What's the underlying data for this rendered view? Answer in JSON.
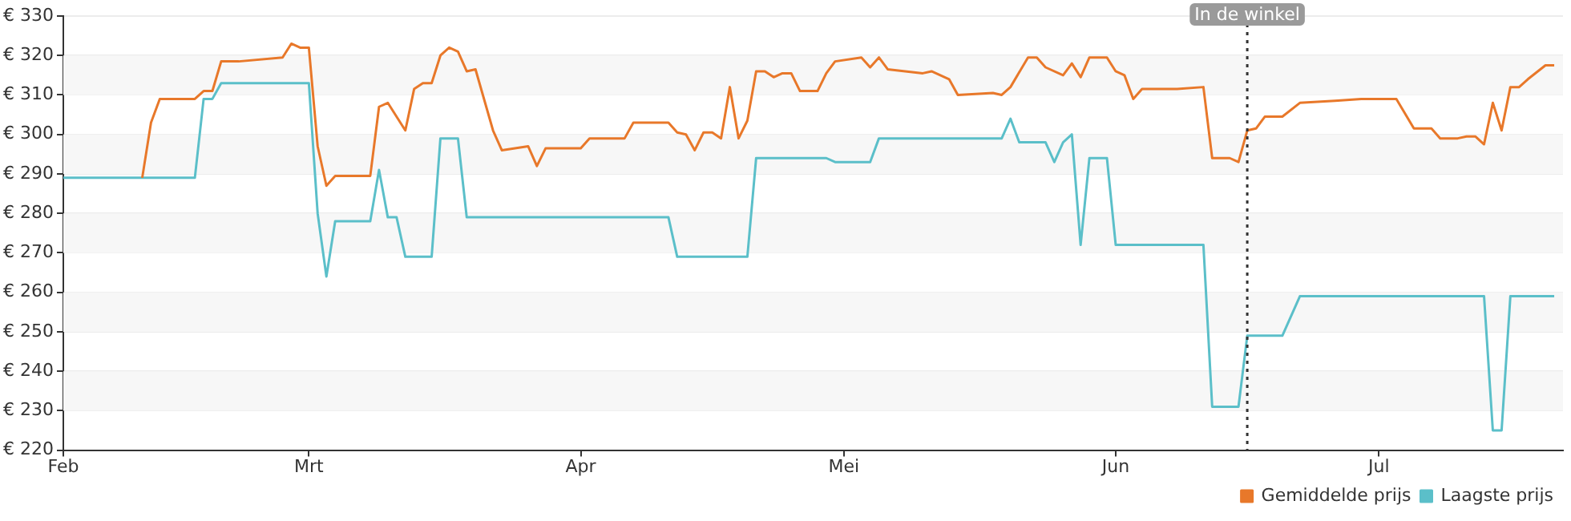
{
  "chart_data": {
    "type": "line",
    "xlim": [
      "--02-01",
      "--07-22"
    ],
    "xticks": [
      {
        "value": "--02-01",
        "label": "Feb"
      },
      {
        "value": "--03-01",
        "label": "Mrt"
      },
      {
        "value": "--04-01",
        "label": "Apr"
      },
      {
        "value": "--05-01",
        "label": "Mei"
      },
      {
        "value": "--06-01",
        "label": "Jun"
      },
      {
        "value": "--07-01",
        "label": "Jul"
      }
    ],
    "ylim": [
      220,
      330
    ],
    "yticks": [
      {
        "value": 220,
        "label": "€ 220"
      },
      {
        "value": 230,
        "label": "€ 230"
      },
      {
        "value": 240,
        "label": "€ 240"
      },
      {
        "value": 250,
        "label": "€ 250"
      },
      {
        "value": 260,
        "label": "€ 260"
      },
      {
        "value": 270,
        "label": "€ 270"
      },
      {
        "value": 280,
        "label": "€ 280"
      },
      {
        "value": 290,
        "label": "€ 290"
      },
      {
        "value": 300,
        "label": "€ 300"
      },
      {
        "value": 310,
        "label": "€ 310"
      },
      {
        "value": 320,
        "label": "€ 320"
      },
      {
        "value": 330,
        "label": "€ 330"
      }
    ],
    "grid": "y",
    "legend": "bottom right",
    "marker": "none",
    "line_style": "solid",
    "ref_lines": [
      {
        "axis": "x",
        "value": "--06-16",
        "label": "In de winkel",
        "line_style": "dotted",
        "color": "#333333"
      }
    ],
    "series": [
      {
        "name": "Gemiddelde prijs",
        "color": "#e8782a",
        "x": [
          "--02-10",
          "--02-11",
          "--02-12",
          "--02-16",
          "--02-17",
          "--02-18",
          "--02-19",
          "--02-21",
          "--02-26",
          "--02-27",
          "--02-28",
          "--03-01",
          "--03-02",
          "--03-03",
          "--03-04",
          "--03-08",
          "--03-09",
          "--03-10",
          "--03-12",
          "--03-13",
          "--03-14",
          "--03-15",
          "--03-16",
          "--03-17",
          "--03-18",
          "--03-19",
          "--03-20",
          "--03-22",
          "--03-23",
          "--03-26",
          "--03-27",
          "--03-28",
          "--04-01",
          "--04-02",
          "--04-06",
          "--04-07",
          "--04-11",
          "--04-12",
          "--04-13",
          "--04-14",
          "--04-15",
          "--04-16",
          "--04-17",
          "--04-18",
          "--04-19",
          "--04-20",
          "--04-21",
          "--04-22",
          "--04-23",
          "--04-24",
          "--04-25",
          "--04-26",
          "--04-28",
          "--04-29",
          "--04-30",
          "--05-03",
          "--05-04",
          "--05-05",
          "--05-06",
          "--05-08",
          "--05-10",
          "--05-11",
          "--05-13",
          "--05-14",
          "--05-18",
          "--05-19",
          "--05-20",
          "--05-22",
          "--05-23",
          "--05-24",
          "--05-26",
          "--05-27",
          "--05-28",
          "--05-29",
          "--05-31",
          "--06-01",
          "--06-02",
          "--06-03",
          "--06-04",
          "--06-08",
          "--06-11",
          "--06-12",
          "--06-14",
          "--06-15",
          "--06-16",
          "--06-17",
          "--06-18",
          "--06-20",
          "--06-22",
          "--06-26",
          "--06-29",
          "--07-03",
          "--07-05",
          "--07-07",
          "--07-08",
          "--07-10",
          "--07-11",
          "--07-12",
          "--07-13",
          "--07-14",
          "--07-15",
          "--07-16",
          "--07-17",
          "--07-18",
          "--07-20",
          "--07-21"
        ],
        "values": [
          289,
          303,
          309,
          309,
          311,
          311,
          318.5,
          318.5,
          319.5,
          323,
          322,
          322,
          297,
          287,
          289.5,
          289.5,
          307,
          308,
          301,
          311.5,
          313,
          313,
          320,
          322,
          321,
          316,
          316.5,
          301,
          296,
          297,
          292,
          296.5,
          296.5,
          299,
          299,
          303,
          303,
          300.5,
          300,
          296,
          300.5,
          300.5,
          299,
          312,
          299,
          303.5,
          316,
          316,
          314.5,
          315.5,
          315.5,
          311,
          311,
          315.5,
          318.5,
          319.5,
          317,
          319.5,
          316.5,
          316,
          315.5,
          316,
          314,
          310,
          310.5,
          310,
          312,
          319.5,
          319.5,
          317,
          315,
          318,
          314.5,
          319.5,
          319.5,
          316,
          315,
          309,
          311.5,
          311.5,
          312,
          294,
          294,
          293,
          301,
          301.5,
          304.5,
          304.5,
          308,
          308.5,
          309,
          309,
          301.5,
          301.5,
          299,
          299,
          299.5,
          299.5,
          297.5,
          308,
          301,
          312,
          312,
          314,
          317.5,
          317.5
        ]
      },
      {
        "name": "Laagste prijs",
        "color": "#5bbfc9",
        "x": [
          "--02-01",
          "--02-16",
          "--02-17",
          "--02-18",
          "--02-19",
          "--03-01",
          "--03-02",
          "--03-03",
          "--03-04",
          "--03-08",
          "--03-09",
          "--03-10",
          "--03-11",
          "--03-12",
          "--03-15",
          "--03-16",
          "--03-18",
          "--03-19",
          "--04-11",
          "--04-12",
          "--04-20",
          "--04-21",
          "--04-29",
          "--04-30",
          "--05-04",
          "--05-05",
          "--05-19",
          "--05-20",
          "--05-21",
          "--05-24",
          "--05-25",
          "--05-26",
          "--05-27",
          "--05-28",
          "--05-29",
          "--05-31",
          "--06-01",
          "--06-11",
          "--06-12",
          "--06-15",
          "--06-16",
          "--06-20",
          "--06-22",
          "--07-13",
          "--07-14",
          "--07-15",
          "--07-16",
          "--07-21"
        ],
        "values": [
          289,
          289,
          309,
          309,
          313,
          313,
          280,
          264,
          278,
          278,
          291,
          279,
          279,
          269,
          269,
          299,
          299,
          279,
          279,
          269,
          269,
          294,
          294,
          293,
          293,
          299,
          299,
          304,
          298,
          298,
          293,
          298,
          300,
          272,
          294,
          294,
          272,
          272,
          231,
          231,
          249,
          249,
          259,
          259,
          225,
          225,
          259,
          259
        ]
      }
    ]
  }
}
